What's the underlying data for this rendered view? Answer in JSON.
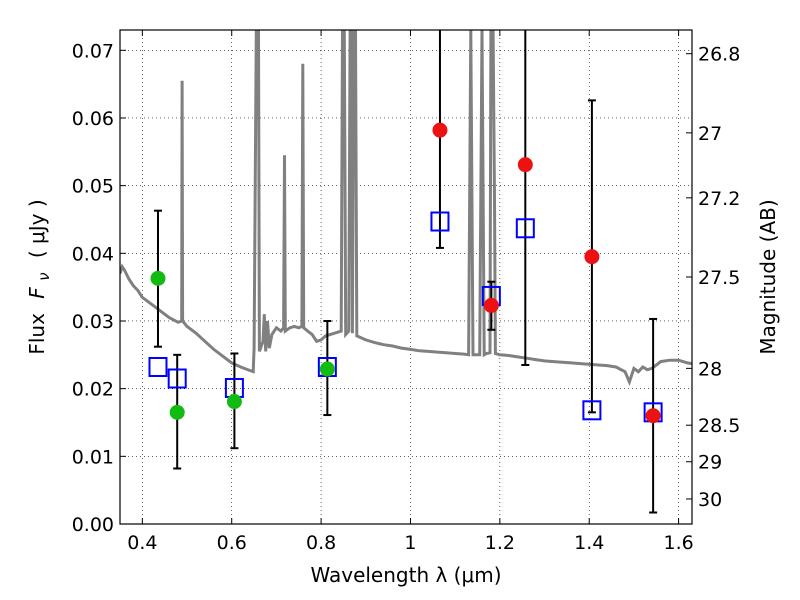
{
  "chart_data": {
    "type": "scatter",
    "title": "",
    "xlabel": "Wavelength  λ (μm)",
    "ylabel_text": "Flux",
    "ylabel_symbol": "F",
    "ylabel_subscript": "ν",
    "ylabel_units": "( μJy )",
    "ylabel_right": "Magnitude (AB)",
    "xlim": [
      0.35,
      1.63
    ],
    "ylim": [
      0.0,
      0.073
    ],
    "grid": true,
    "x_ticks": [
      {
        "value": 0.4,
        "label": "0.4"
      },
      {
        "value": 0.6,
        "label": "0.6"
      },
      {
        "value": 0.8,
        "label": "0.8"
      },
      {
        "value": 1.0,
        "label": "1"
      },
      {
        "value": 1.2,
        "label": "1.2"
      },
      {
        "value": 1.4,
        "label": "1.4"
      },
      {
        "value": 1.6,
        "label": "1.6"
      }
    ],
    "y_ticks": [
      {
        "value": 0.0,
        "label": "0.00"
      },
      {
        "value": 0.01,
        "label": "0.01"
      },
      {
        "value": 0.02,
        "label": "0.02"
      },
      {
        "value": 0.03,
        "label": "0.03"
      },
      {
        "value": 0.04,
        "label": "0.04"
      },
      {
        "value": 0.05,
        "label": "0.05"
      },
      {
        "value": 0.06,
        "label": "0.06"
      },
      {
        "value": 0.07,
        "label": "0.07"
      }
    ],
    "right_ticks": [
      {
        "flux": 0.0695,
        "label": "26.8"
      },
      {
        "flux": 0.0578,
        "label": "27"
      },
      {
        "flux": 0.0482,
        "label": "27.2"
      },
      {
        "flux": 0.0365,
        "label": "27.5"
      },
      {
        "flux": 0.023,
        "label": "28"
      },
      {
        "flux": 0.0146,
        "label": "28.5"
      },
      {
        "flux": 0.0092,
        "label": "29"
      },
      {
        "flux": 0.0037,
        "label": "30"
      }
    ],
    "model_spectrum": {
      "color": "#808080",
      "points": [
        [
          0.35,
          0.037
        ],
        [
          0.355,
          0.038
        ],
        [
          0.36,
          0.0375
        ],
        [
          0.37,
          0.0362
        ],
        [
          0.38,
          0.0352
        ],
        [
          0.39,
          0.0345
        ],
        [
          0.4,
          0.0335
        ],
        [
          0.42,
          0.0325
        ],
        [
          0.44,
          0.0315
        ],
        [
          0.46,
          0.0305
        ],
        [
          0.48,
          0.0298
        ],
        [
          0.488,
          0.03
        ],
        [
          0.489,
          0.0655
        ],
        [
          0.49,
          0.03
        ],
        [
          0.5,
          0.0292
        ],
        [
          0.52,
          0.0282
        ],
        [
          0.54,
          0.027
        ],
        [
          0.56,
          0.0258
        ],
        [
          0.58,
          0.0248
        ],
        [
          0.6,
          0.0238
        ],
        [
          0.62,
          0.0232
        ],
        [
          0.64,
          0.0227
        ],
        [
          0.648,
          0.0225
        ],
        [
          0.65,
          0.026
        ],
        [
          0.655,
          0.073
        ],
        [
          0.66,
          0.073
        ],
        [
          0.662,
          0.0255
        ],
        [
          0.67,
          0.027
        ],
        [
          0.673,
          0.031
        ],
        [
          0.676,
          0.0255
        ],
        [
          0.68,
          0.03
        ],
        [
          0.684,
          0.026
        ],
        [
          0.69,
          0.028
        ],
        [
          0.7,
          0.029
        ],
        [
          0.71,
          0.0285
        ],
        [
          0.716,
          0.029
        ],
        [
          0.718,
          0.0545
        ],
        [
          0.72,
          0.0285
        ],
        [
          0.73,
          0.029
        ],
        [
          0.74,
          0.0292
        ],
        [
          0.75,
          0.029
        ],
        [
          0.757,
          0.0292
        ],
        [
          0.759,
          0.068
        ],
        [
          0.761,
          0.029
        ],
        [
          0.77,
          0.0285
        ],
        [
          0.78,
          0.028
        ],
        [
          0.79,
          0.027
        ],
        [
          0.8,
          0.0272
        ],
        [
          0.81,
          0.0278
        ],
        [
          0.83,
          0.0282
        ],
        [
          0.845,
          0.0285
        ],
        [
          0.848,
          0.073
        ],
        [
          0.852,
          0.073
        ],
        [
          0.855,
          0.028
        ],
        [
          0.862,
          0.0285
        ],
        [
          0.865,
          0.073
        ],
        [
          0.868,
          0.073
        ],
        [
          0.87,
          0.0282
        ],
        [
          0.873,
          0.073
        ],
        [
          0.877,
          0.073
        ],
        [
          0.88,
          0.0278
        ],
        [
          0.9,
          0.0272
        ],
        [
          0.92,
          0.0268
        ],
        [
          0.94,
          0.0265
        ],
        [
          0.96,
          0.0263
        ],
        [
          0.98,
          0.026
        ],
        [
          1.0,
          0.0258
        ],
        [
          1.02,
          0.0256
        ],
        [
          1.04,
          0.0255
        ],
        [
          1.06,
          0.0254
        ],
        [
          1.08,
          0.0253
        ],
        [
          1.1,
          0.0252
        ],
        [
          1.12,
          0.0251
        ],
        [
          1.13,
          0.025
        ],
        [
          1.135,
          0.073
        ],
        [
          1.14,
          0.025
        ],
        [
          1.15,
          0.025
        ],
        [
          1.155,
          0.025
        ],
        [
          1.16,
          0.073
        ],
        [
          1.165,
          0.025
        ],
        [
          1.17,
          0.0252
        ],
        [
          1.178,
          0.0253
        ],
        [
          1.18,
          0.073
        ],
        [
          1.185,
          0.073
        ],
        [
          1.188,
          0.048
        ],
        [
          1.19,
          0.0252
        ],
        [
          1.2,
          0.025
        ],
        [
          1.22,
          0.0249
        ],
        [
          1.24,
          0.0247
        ],
        [
          1.26,
          0.0245
        ],
        [
          1.28,
          0.0243
        ],
        [
          1.3,
          0.0241
        ],
        [
          1.32,
          0.024
        ],
        [
          1.34,
          0.0239
        ],
        [
          1.36,
          0.0238
        ],
        [
          1.38,
          0.0237
        ],
        [
          1.4,
          0.0236
        ],
        [
          1.42,
          0.0235
        ],
        [
          1.44,
          0.0234
        ],
        [
          1.46,
          0.0232
        ],
        [
          1.48,
          0.0225
        ],
        [
          1.49,
          0.021
        ],
        [
          1.5,
          0.023
        ],
        [
          1.51,
          0.0225
        ],
        [
          1.52,
          0.0232
        ],
        [
          1.53,
          0.0228
        ],
        [
          1.54,
          0.023
        ],
        [
          1.55,
          0.0235
        ],
        [
          1.56,
          0.024
        ],
        [
          1.58,
          0.0242
        ],
        [
          1.6,
          0.0242
        ],
        [
          1.62,
          0.0238
        ],
        [
          1.63,
          0.0237
        ]
      ]
    },
    "model_photometry": {
      "marker": "open-square",
      "color": "#0000ff",
      "points": [
        {
          "x": 0.435,
          "y": 0.0232
        },
        {
          "x": 0.478,
          "y": 0.0215
        },
        {
          "x": 0.606,
          "y": 0.0201
        },
        {
          "x": 0.814,
          "y": 0.0232
        },
        {
          "x": 1.066,
          "y": 0.0447
        },
        {
          "x": 1.181,
          "y": 0.0337
        },
        {
          "x": 1.257,
          "y": 0.0437
        },
        {
          "x": 1.406,
          "y": 0.0168
        },
        {
          "x": 1.543,
          "y": 0.0165
        }
      ]
    },
    "observed_photometry": [
      {
        "x": 0.435,
        "y": 0.0363,
        "err_low": 0.0262,
        "err_high": 0.0463,
        "color": "#11bb11"
      },
      {
        "x": 0.478,
        "y": 0.0165,
        "err_low": 0.0082,
        "err_high": 0.025,
        "color": "#11bb11"
      },
      {
        "x": 0.606,
        "y": 0.0181,
        "err_low": 0.0112,
        "err_high": 0.0252,
        "color": "#11bb11"
      },
      {
        "x": 0.814,
        "y": 0.0229,
        "err_low": 0.0161,
        "err_high": 0.03,
        "color": "#11bb11"
      },
      {
        "x": 1.066,
        "y": 0.0582,
        "err_low": 0.0408,
        "err_high": 0.073,
        "color": "#ee1111"
      },
      {
        "x": 1.181,
        "y": 0.0323,
        "err_low": 0.0287,
        "err_high": 0.0358,
        "color": "#ee1111"
      },
      {
        "x": 1.257,
        "y": 0.0531,
        "err_low": 0.0235,
        "err_high": 0.073,
        "color": "#ee1111"
      },
      {
        "x": 1.406,
        "y": 0.0395,
        "err_low": 0.0165,
        "err_high": 0.0626,
        "color": "#ee1111"
      },
      {
        "x": 1.543,
        "y": 0.016,
        "err_low": 0.0017,
        "err_high": 0.0303,
        "color": "#ee1111"
      }
    ]
  }
}
